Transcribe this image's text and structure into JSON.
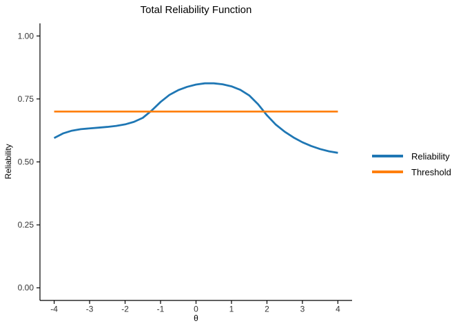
{
  "chart_data": {
    "type": "line",
    "title": "Total Reliability Function",
    "xlabel": "θ",
    "ylabel": "Reliability",
    "xlim": [
      -4,
      4
    ],
    "ylim": [
      0,
      1
    ],
    "expansion": 0.05,
    "grid": false,
    "legend_position": "right",
    "x_ticks": [
      -4,
      -3,
      -2,
      -1,
      0,
      1,
      2,
      3,
      4
    ],
    "x_tick_labels": [
      "-4",
      "-3",
      "-2",
      "-1",
      "0",
      "1",
      "2",
      "3",
      "4"
    ],
    "y_ticks": [
      0,
      0.25,
      0.5,
      0.75,
      1
    ],
    "y_tick_labels": [
      "0.00",
      "0.25",
      "0.50",
      "0.75",
      "1.00"
    ],
    "axis_color": "#000000",
    "tick_label_color": "#333333",
    "series": [
      {
        "name": "Reliability",
        "type": "line",
        "color": "#1f77b4",
        "stroke_width": 2.8,
        "x": [
          -4,
          -3.75,
          -3.5,
          -3.25,
          -3,
          -2.75,
          -2.5,
          -2.25,
          -2,
          -1.75,
          -1.5,
          -1.25,
          -1,
          -0.75,
          -0.5,
          -0.25,
          0,
          0.25,
          0.5,
          0.75,
          1,
          1.25,
          1.5,
          1.75,
          2,
          2.25,
          2.5,
          2.75,
          3,
          3.25,
          3.5,
          3.75,
          4
        ],
        "y": [
          0.595,
          0.613,
          0.624,
          0.63,
          0.633,
          0.636,
          0.639,
          0.643,
          0.649,
          0.659,
          0.675,
          0.704,
          0.738,
          0.766,
          0.785,
          0.798,
          0.807,
          0.812,
          0.812,
          0.808,
          0.8,
          0.786,
          0.764,
          0.729,
          0.685,
          0.648,
          0.62,
          0.597,
          0.578,
          0.563,
          0.551,
          0.542,
          0.536
        ]
      },
      {
        "name": "Threshold",
        "type": "hline",
        "color": "#ff7f0e",
        "stroke_width": 2.8,
        "value": 0.7,
        "x": [
          -4,
          4
        ],
        "y": [
          0.7,
          0.7
        ]
      }
    ],
    "legend": {
      "entries": [
        {
          "label": "Reliability",
          "color": "#1f77b4"
        },
        {
          "label": "Threshold",
          "color": "#ff7f0e"
        }
      ]
    }
  }
}
